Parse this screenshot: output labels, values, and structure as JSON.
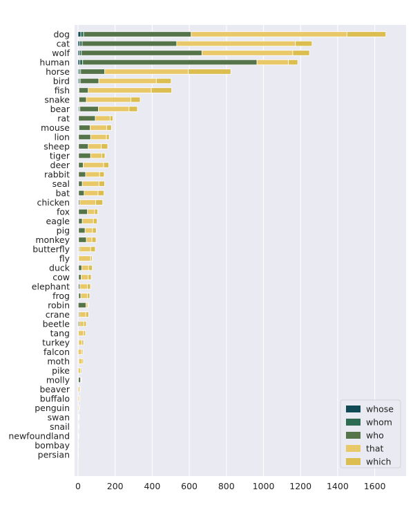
{
  "chart_data": {
    "type": "bar",
    "orientation": "horizontal",
    "stacked": true,
    "title": "",
    "xlabel": "",
    "ylabel": "",
    "xlim": [
      0,
      1750
    ],
    "xticks": [
      0,
      200,
      400,
      600,
      800,
      1000,
      1200,
      1400,
      1600
    ],
    "grid": true,
    "legend_position": "bottom-right",
    "categories": [
      "dog",
      "cat",
      "wolf",
      "human",
      "horse",
      "bird",
      "fish",
      "snake",
      "bear",
      "rat",
      "mouse",
      "lion",
      "sheep",
      "tiger",
      "deer",
      "rabbit",
      "seal",
      "bat",
      "chicken",
      "fox",
      "eagle",
      "pig",
      "monkey",
      "butterfly",
      "fly",
      "duck",
      "cow",
      "elephant",
      "frog",
      "robin",
      "crane",
      "beetle",
      "tang",
      "turkey",
      "falcon",
      "moth",
      "pike",
      "molly",
      "beaver",
      "buffalo",
      "penguin",
      "swan",
      "snail",
      "newfoundland",
      "bombay",
      "persian"
    ],
    "series": [
      {
        "name": "whose",
        "color": "#0f4a55",
        "values": [
          15,
          10,
          8,
          10,
          6,
          5,
          2,
          2,
          4,
          1,
          2,
          1,
          1,
          1,
          1,
          1,
          1,
          1,
          1,
          1,
          1,
          1,
          1,
          1,
          0,
          1,
          1,
          1,
          1,
          0,
          1,
          0,
          0,
          0,
          0,
          0,
          0,
          0,
          0,
          0,
          0,
          0,
          0,
          0,
          0,
          0
        ]
      },
      {
        "name": "whom",
        "color": "#2d6b52",
        "values": [
          15,
          12,
          10,
          15,
          8,
          7,
          3,
          3,
          6,
          2,
          3,
          2,
          2,
          2,
          2,
          2,
          2,
          2,
          2,
          2,
          2,
          2,
          2,
          2,
          1,
          2,
          2,
          1,
          2,
          1,
          1,
          1,
          0,
          1,
          0,
          1,
          0,
          2,
          0,
          0,
          0,
          1,
          0,
          0,
          0,
          0
        ]
      },
      {
        "name": "who",
        "color": "#55744a",
        "values": [
          580,
          510,
          650,
          940,
          130,
          100,
          50,
          40,
          100,
          90,
          60,
          65,
          52,
          65,
          25,
          38,
          20,
          30,
          7,
          48,
          20,
          35,
          42,
          5,
          2,
          17,
          14,
          8,
          12,
          42,
          5,
          6,
          2,
          2,
          1,
          3,
          1,
          12,
          1,
          1,
          0,
          1,
          0,
          0,
          0,
          0
        ]
      },
      {
        "name": "that",
        "color": "#e9c86a",
        "values": [
          840,
          640,
          490,
          170,
          450,
          310,
          340,
          240,
          165,
          80,
          90,
          85,
          70,
          60,
          110,
          75,
          90,
          75,
          85,
          38,
          60,
          40,
          30,
          60,
          65,
          37,
          38,
          40,
          35,
          10,
          35,
          25,
          28,
          18,
          18,
          18,
          12,
          2,
          8,
          7,
          5,
          2,
          3,
          2,
          1,
          1
        ]
      },
      {
        "name": "which",
        "color": "#dbbd50",
        "values": [
          210,
          90,
          90,
          50,
          230,
          80,
          110,
          50,
          45,
          15,
          25,
          15,
          35,
          17,
          28,
          25,
          30,
          32,
          38,
          17,
          20,
          20,
          22,
          25,
          8,
          20,
          16,
          17,
          13,
          3,
          15,
          12,
          10,
          9,
          7,
          7,
          6,
          1,
          3,
          2,
          2,
          1,
          1,
          1,
          0,
          0
        ]
      }
    ]
  }
}
